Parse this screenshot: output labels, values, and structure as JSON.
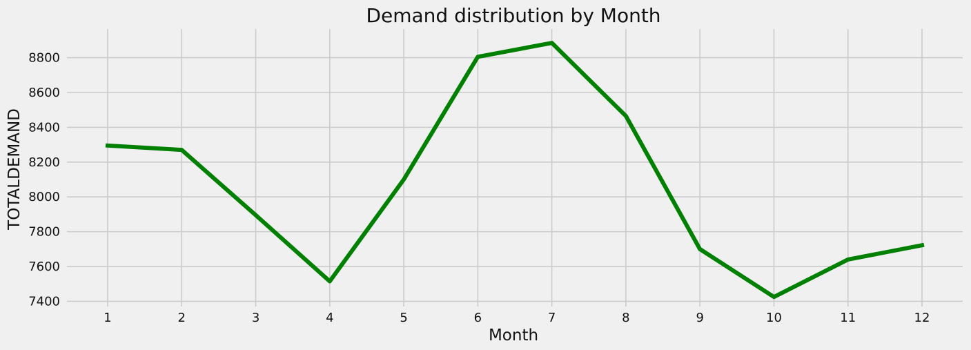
{
  "chart_data": {
    "type": "line",
    "title": "Demand distribution by Month",
    "xlabel": "Month",
    "ylabel": "TOTALDEMAND",
    "x": [
      1,
      2,
      3,
      4,
      5,
      6,
      7,
      8,
      9,
      10,
      11,
      12
    ],
    "series": [
      {
        "values": [
          8295,
          8270,
          7895,
          7515,
          8100,
          8805,
          8885,
          8465,
          7700,
          7425,
          7640,
          7722
        ],
        "color": "#008000"
      }
    ],
    "xlim": [
      0.45,
      12.55
    ],
    "ylim": [
      7370,
      8965
    ],
    "yticks": [
      7400,
      7600,
      7800,
      8000,
      8200,
      8400,
      8600,
      8800
    ],
    "xticks": [
      1,
      2,
      3,
      4,
      5,
      6,
      7,
      8,
      9,
      10,
      11,
      12
    ],
    "grid": true,
    "legend": "none",
    "background": "#f0f0f0",
    "grid_color": "#cbcbcb"
  }
}
